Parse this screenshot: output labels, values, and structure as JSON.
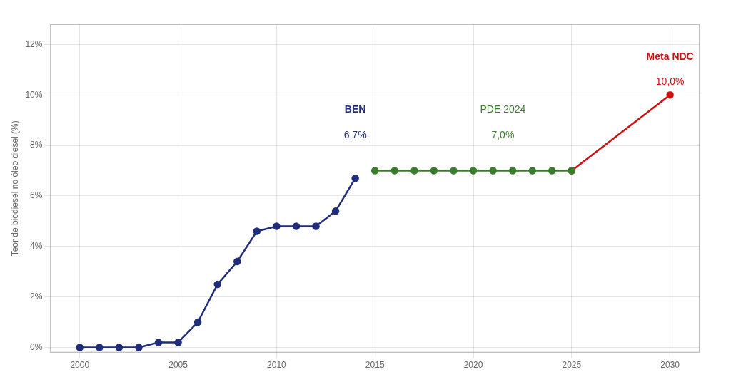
{
  "chart_data": {
    "type": "line",
    "y_label": "Teor de biodiesel no óleo diesel (%)",
    "series": [
      {
        "color": "#1f2d7b",
        "marker": "circle",
        "x": [
          2000,
          2001,
          2002,
          2003,
          2004,
          2005,
          2006,
          2007,
          2008,
          2009,
          2010,
          2011,
          2012,
          2013,
          2014
        ],
        "values": [
          0.0,
          0.0,
          0.0,
          0.0,
          0.002,
          0.002,
          0.01,
          0.025,
          0.034,
          0.046,
          0.048,
          0.048,
          0.048,
          0.054,
          0.067
        ]
      },
      {
        "color": "#3a7d2c",
        "marker": "circle",
        "x": [
          2015,
          2016,
          2017,
          2018,
          2019,
          2020,
          2021,
          2022,
          2023,
          2024,
          2025
        ],
        "values": [
          0.07,
          0.07,
          0.07,
          0.07,
          0.07,
          0.07,
          0.07,
          0.07,
          0.07,
          0.07,
          0.07
        ]
      },
      {
        "color": "#cc1111",
        "marker": "circle",
        "x": [
          2025,
          2030
        ],
        "values": [
          0.07,
          0.1
        ]
      }
    ],
    "annotations": [
      {
        "text": "BEN",
        "x": 2014.0,
        "y": 0.092,
        "color": "#1f2d7b"
      },
      {
        "text": "6,7%",
        "x": 2014.0,
        "y": 0.082,
        "color": "#1f2d7b"
      },
      {
        "text": "PDE 2024",
        "x": 2021.5,
        "y": 0.092,
        "color": "#3a7d2c"
      },
      {
        "text": "7,0%",
        "x": 2021.5,
        "y": 0.082,
        "color": "#3a7d2c"
      },
      {
        "text": "Meta NDC",
        "x": 2030.0,
        "y": 0.113,
        "color": "#cc1111"
      },
      {
        "text": "10,0%",
        "x": 2030.0,
        "y": 0.103,
        "color": "#cc1111"
      }
    ],
    "xlim": [
      1998.5,
      2031.5
    ],
    "xticks": [
      2000,
      2005,
      2010,
      2015,
      2020,
      2025,
      2030
    ],
    "ylim": [
      -0.002,
      0.128
    ],
    "yticks": [
      {
        "value": 0.0,
        "label": "0%"
      },
      {
        "value": 0.02,
        "label": "2%"
      },
      {
        "value": 0.04,
        "label": "4%"
      },
      {
        "value": 0.06,
        "label": "6%"
      },
      {
        "value": 0.08,
        "label": "8%"
      },
      {
        "value": 0.1,
        "label": "10%"
      },
      {
        "value": 0.12,
        "label": "12%"
      }
    ],
    "grid": true
  }
}
